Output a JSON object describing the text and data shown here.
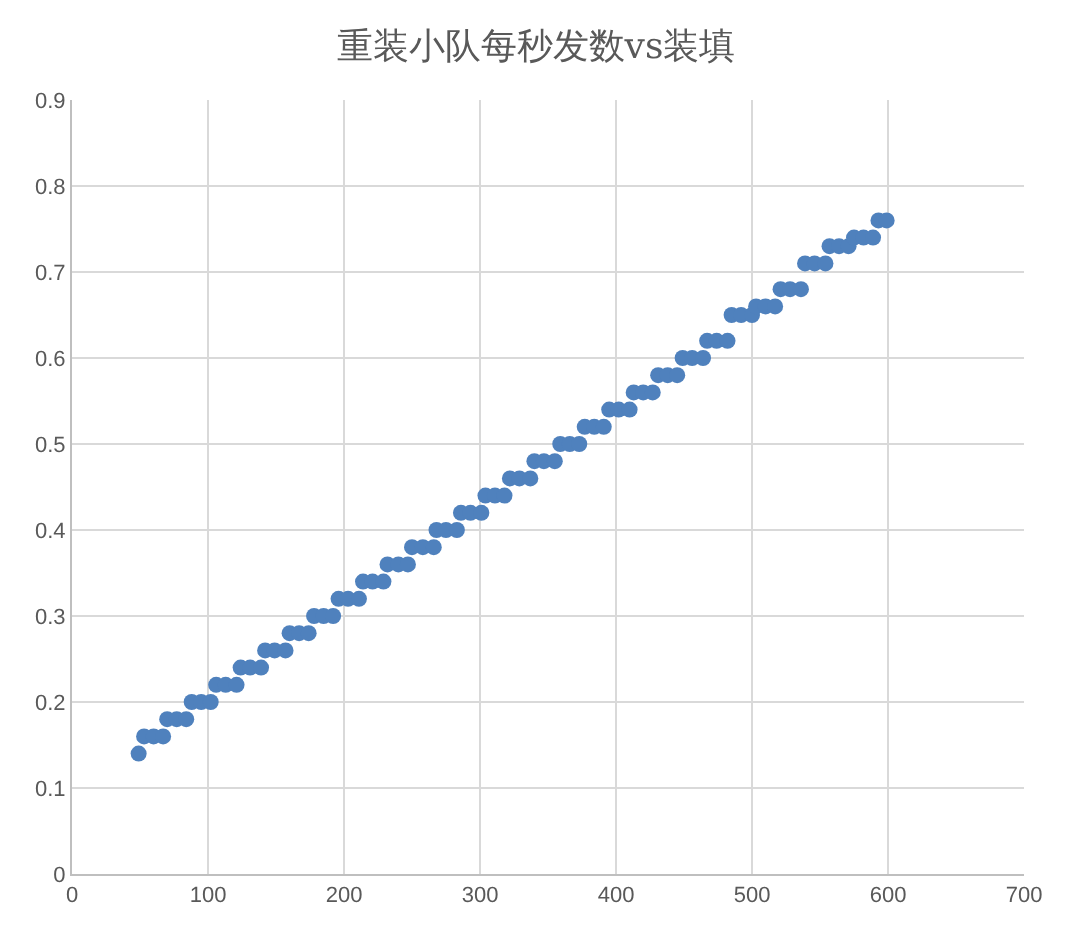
{
  "chart_data": {
    "type": "scatter",
    "title": "重装小队每秒发数vs装填",
    "series": [
      {
        "color": "#4f81bd",
        "x": [
          49,
          53,
          60,
          67,
          70,
          77,
          84,
          88,
          95,
          102,
          106,
          113,
          121,
          124,
          131,
          139,
          142,
          149,
          157,
          160,
          167,
          174,
          178,
          185,
          192,
          196,
          203,
          211,
          214,
          221,
          229,
          232,
          240,
          247,
          250,
          258,
          266,
          268,
          275,
          283,
          286,
          293,
          301,
          304,
          311,
          318,
          322,
          329,
          337,
          340,
          347,
          355,
          359,
          366,
          373,
          377,
          384,
          391,
          395,
          402,
          410,
          413,
          420,
          427,
          431,
          438,
          445,
          449,
          456,
          464,
          467,
          474,
          482,
          485,
          492,
          500,
          503,
          510,
          517,
          521,
          528,
          536,
          539,
          546,
          554,
          557,
          564,
          571,
          575,
          582,
          589,
          593,
          599
        ],
        "values": [
          0.14,
          0.16,
          0.16,
          0.16,
          0.18,
          0.18,
          0.18,
          0.2,
          0.2,
          0.2,
          0.22,
          0.22,
          0.22,
          0.24,
          0.24,
          0.24,
          0.26,
          0.26,
          0.26,
          0.28,
          0.28,
          0.28,
          0.3,
          0.3,
          0.3,
          0.32,
          0.32,
          0.32,
          0.34,
          0.34,
          0.34,
          0.36,
          0.36,
          0.36,
          0.38,
          0.38,
          0.38,
          0.4,
          0.4,
          0.4,
          0.42,
          0.42,
          0.42,
          0.44,
          0.44,
          0.44,
          0.46,
          0.46,
          0.46,
          0.48,
          0.48,
          0.48,
          0.5,
          0.5,
          0.5,
          0.52,
          0.52,
          0.52,
          0.54,
          0.54,
          0.54,
          0.56,
          0.56,
          0.56,
          0.58,
          0.58,
          0.58,
          0.6,
          0.6,
          0.6,
          0.62,
          0.62,
          0.62,
          0.65,
          0.65,
          0.65,
          0.66,
          0.66,
          0.66,
          0.68,
          0.68,
          0.68,
          0.71,
          0.71,
          0.71,
          0.73,
          0.73,
          0.73,
          0.74,
          0.74,
          0.74,
          0.76,
          0.76
        ]
      }
    ],
    "xlim": [
      0,
      700
    ],
    "xticks": [
      0,
      100,
      200,
      300,
      400,
      500,
      600,
      700
    ],
    "ylim": [
      0,
      0.9
    ],
    "yticks": [
      0,
      0.1,
      0.2,
      0.3,
      0.4,
      0.5,
      0.6,
      0.7,
      0.8,
      0.9
    ],
    "grid": true,
    "marker": "circle"
  }
}
